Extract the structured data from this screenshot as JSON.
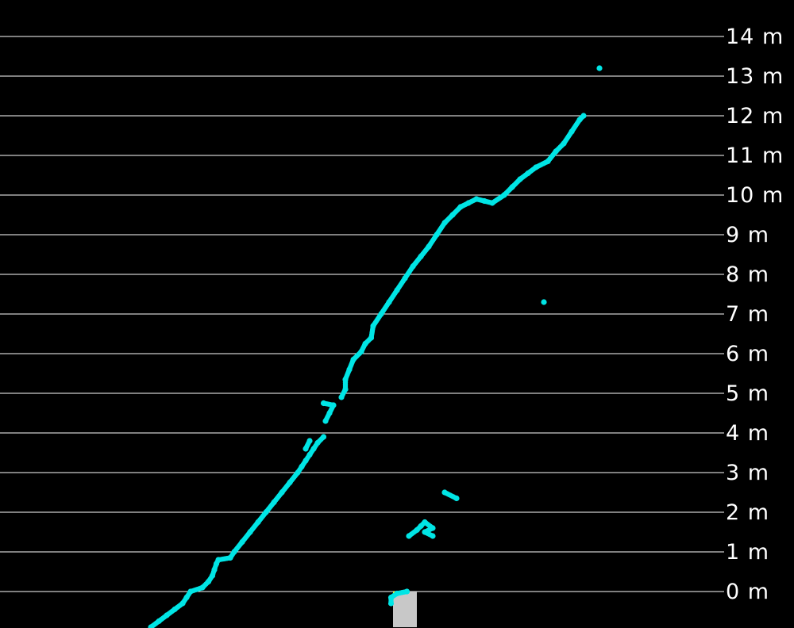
{
  "chart_data": {
    "type": "scatter",
    "title": "",
    "xlabel": "",
    "ylabel": "",
    "ylim": [
      -0.9,
      14.9
    ],
    "yunit": "m",
    "grid": true,
    "gridlines": [
      0,
      1,
      2,
      3,
      4,
      5,
      6,
      7,
      8,
      9,
      10,
      11,
      12,
      13,
      14
    ],
    "tick_labels": [
      "0 m",
      "1 m",
      "2 m",
      "3 m",
      "4 m",
      "5 m",
      "6 m",
      "7 m",
      "8 m",
      "9 m",
      "10 m",
      "11 m",
      "12 m",
      "13 m",
      "14 m"
    ],
    "sensor": {
      "x": [
        -0.3,
        0.3
      ],
      "y": [
        -0.9,
        0.0
      ],
      "color": "#c8c8c8",
      "marker_color": "#ffff00"
    },
    "series": [
      {
        "color": "#00e5e5",
        "points": [
          [
            -6.4,
            -0.9
          ],
          [
            -6.2,
            -0.75
          ],
          [
            -6.0,
            -0.6
          ],
          [
            -5.8,
            -0.45
          ],
          [
            -5.6,
            -0.3
          ],
          [
            -5.5,
            -0.15
          ],
          [
            -5.4,
            0.0
          ],
          [
            -5.1,
            0.1
          ],
          [
            -4.95,
            0.25
          ],
          [
            -4.85,
            0.4
          ],
          [
            -4.8,
            0.55
          ],
          [
            -4.75,
            0.7
          ],
          [
            -4.7,
            0.8
          ],
          [
            -4.4,
            0.85
          ],
          [
            -4.3,
            1.0
          ],
          [
            -4.1,
            1.25
          ],
          [
            -3.9,
            1.5
          ],
          [
            -3.7,
            1.75
          ],
          [
            -3.5,
            2.0
          ],
          [
            -3.3,
            2.25
          ],
          [
            -3.1,
            2.5
          ],
          [
            -2.9,
            2.75
          ],
          [
            -2.7,
            3.0
          ],
          [
            -2.6,
            3.15
          ],
          [
            -2.5,
            3.3
          ],
          [
            -2.4,
            3.45
          ],
          [
            -2.3,
            3.6
          ],
          [
            -2.2,
            3.75
          ],
          [
            -2.05,
            3.9
          ],
          [
            -2.5,
            3.6
          ],
          [
            -2.4,
            3.8
          ],
          [
            -2.0,
            4.3
          ],
          [
            -1.9,
            4.5
          ],
          [
            -1.8,
            4.7
          ],
          [
            -2.05,
            4.75
          ],
          [
            -1.6,
            4.9
          ],
          [
            -1.5,
            5.1
          ],
          [
            -1.5,
            5.35
          ],
          [
            -1.4,
            5.6
          ],
          [
            -1.3,
            5.85
          ],
          [
            -1.1,
            6.05
          ],
          [
            -1.0,
            6.25
          ],
          [
            -0.85,
            6.4
          ],
          [
            -0.8,
            6.7
          ],
          [
            -0.6,
            7.0
          ],
          [
            -0.4,
            7.3
          ],
          [
            -0.2,
            7.6
          ],
          [
            0.0,
            7.9
          ],
          [
            0.2,
            8.2
          ],
          [
            0.4,
            8.45
          ],
          [
            0.6,
            8.7
          ],
          [
            0.8,
            9.0
          ],
          [
            1.0,
            9.3
          ],
          [
            1.2,
            9.5
          ],
          [
            1.4,
            9.7
          ],
          [
            1.6,
            9.8
          ],
          [
            1.8,
            9.9
          ],
          [
            2.0,
            9.85
          ],
          [
            2.2,
            9.8
          ],
          [
            2.5,
            10.0
          ],
          [
            2.7,
            10.2
          ],
          [
            2.9,
            10.4
          ],
          [
            3.1,
            10.55
          ],
          [
            3.3,
            10.7
          ],
          [
            3.6,
            10.85
          ],
          [
            3.8,
            11.1
          ],
          [
            4.0,
            11.3
          ],
          [
            4.2,
            11.6
          ],
          [
            4.4,
            11.9
          ],
          [
            4.5,
            12.0
          ],
          [
            4.9,
            13.2
          ],
          [
            3.5,
            7.3
          ],
          [
            1.0,
            2.5
          ],
          [
            1.3,
            2.35
          ],
          [
            0.1,
            1.4
          ],
          [
            0.3,
            1.55
          ],
          [
            0.4,
            1.65
          ],
          [
            0.5,
            1.75
          ],
          [
            0.7,
            1.6
          ],
          [
            0.5,
            1.5
          ],
          [
            0.7,
            1.4
          ],
          [
            -0.35,
            -0.3
          ],
          [
            -0.35,
            -0.15
          ],
          [
            -0.2,
            -0.05
          ],
          [
            0.05,
            0.0
          ]
        ]
      }
    ]
  }
}
